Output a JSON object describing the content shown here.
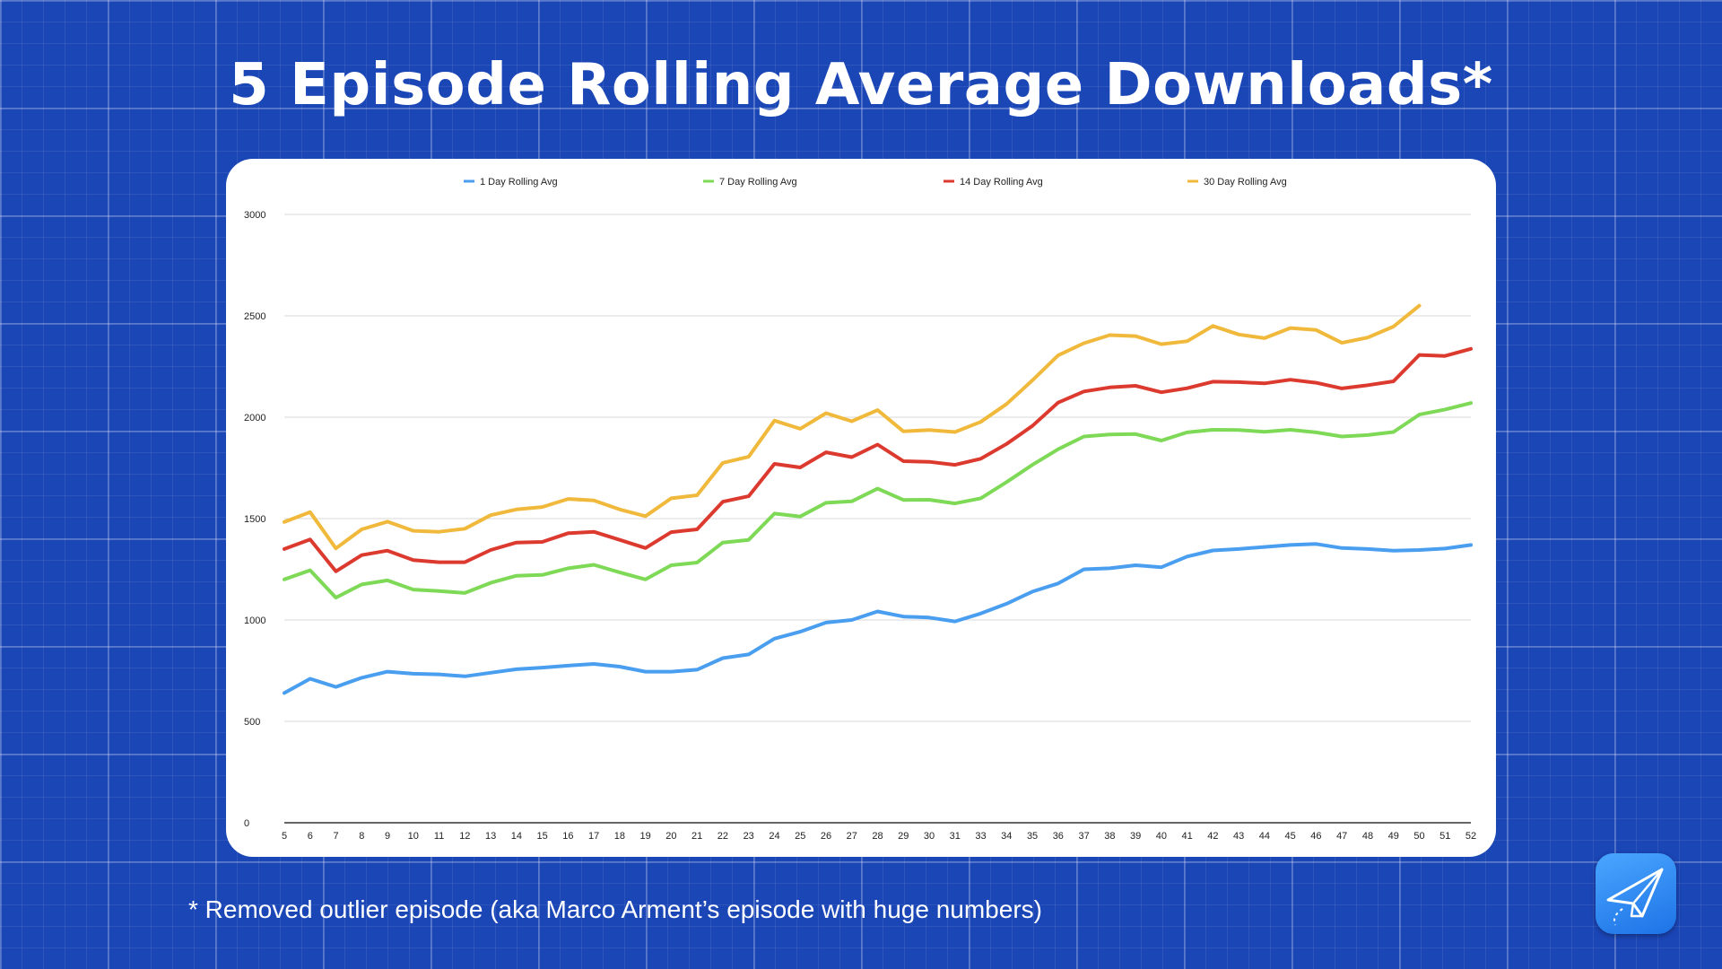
{
  "slide": {
    "title": "5 Episode Rolling Average Downloads*",
    "footnote": "* Removed outlier episode (aka Marco Arment’s episode with huge numbers)"
  },
  "icons": {
    "app": "paper-plane-icon"
  },
  "chart_data": {
    "type": "line",
    "title": "",
    "xlabel": "",
    "ylabel": "",
    "ylim": [
      0,
      3000
    ],
    "yticks": [
      0,
      500,
      1000,
      1500,
      2000,
      2500,
      3000
    ],
    "grid": true,
    "legend_position": "top",
    "categories": [
      "5",
      "6",
      "7",
      "8",
      "9",
      "10",
      "11",
      "12",
      "13",
      "14",
      "15",
      "16",
      "17",
      "18",
      "19",
      "20",
      "21",
      "22",
      "23",
      "24",
      "25",
      "26",
      "27",
      "28",
      "29",
      "30",
      "31",
      "33",
      "34",
      "35",
      "36",
      "37",
      "38",
      "39",
      "40",
      "41",
      "42",
      "43",
      "44",
      "45",
      "46",
      "47",
      "48",
      "49",
      "50",
      "51",
      "52"
    ],
    "series": [
      {
        "name": "1 Day Rolling Avg",
        "color": "#4a9ef0",
        "values": [
          640,
          710,
          670,
          715,
          745,
          735,
          732,
          722,
          740,
          757,
          765,
          775,
          783,
          770,
          745,
          745,
          755,
          812,
          830,
          908,
          942,
          987,
          1000,
          1042,
          1017,
          1012,
          993,
          1032,
          1080,
          1140,
          1180,
          1250,
          1255,
          1270,
          1260,
          1313,
          1343,
          1350,
          1360,
          1370,
          1375,
          1355,
          1350,
          1342,
          1345,
          1352,
          1370
        ]
      },
      {
        "name": "7 Day Rolling Avg",
        "color": "#7ed957",
        "values": [
          1200,
          1245,
          1110,
          1175,
          1195,
          1150,
          1143,
          1133,
          1183,
          1218,
          1222,
          1255,
          1272,
          1235,
          1200,
          1270,
          1283,
          1382,
          1395,
          1525,
          1510,
          1578,
          1585,
          1648,
          1592,
          1593,
          1575,
          1600,
          1680,
          1765,
          1842,
          1905,
          1915,
          1917,
          1885,
          1925,
          1938,
          1937,
          1928,
          1938,
          1925,
          1905,
          1912,
          1927,
          2013,
          2038,
          2070
        ]
      },
      {
        "name": "14 Day Rolling Avg",
        "color": "#dc3a2f",
        "values": [
          1350,
          1397,
          1240,
          1320,
          1342,
          1295,
          1285,
          1285,
          1345,
          1382,
          1385,
          1428,
          1435,
          1395,
          1355,
          1433,
          1447,
          1583,
          1610,
          1770,
          1752,
          1827,
          1803,
          1865,
          1783,
          1780,
          1765,
          1795,
          1868,
          1957,
          2072,
          2127,
          2147,
          2155,
          2123,
          2143,
          2175,
          2173,
          2167,
          2185,
          2170,
          2142,
          2158,
          2177,
          2307,
          2302,
          2337
        ]
      },
      {
        "name": "30 Day Rolling Avg",
        "color": "#f0b93c",
        "values": [
          1483,
          1532,
          1353,
          1447,
          1485,
          1440,
          1435,
          1450,
          1517,
          1545,
          1557,
          1597,
          1590,
          1545,
          1512,
          1600,
          1615,
          1775,
          1805,
          1983,
          1943,
          2020,
          1980,
          2035,
          1930,
          1937,
          1927,
          1977,
          2065,
          2182,
          2305,
          2365,
          2405,
          2400,
          2360,
          2375,
          2450,
          2408,
          2390,
          2440,
          2430,
          2367,
          2393,
          2447,
          2550,
          null,
          null
        ]
      }
    ]
  }
}
